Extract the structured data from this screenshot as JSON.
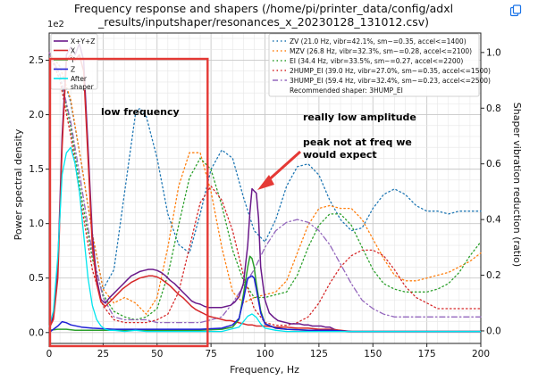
{
  "page": {
    "copy_icon": "copy-image-icon"
  },
  "chart_data": {
    "type": "line",
    "title_line1": "Frequency response and shapers (/home/pi/printer_data/config/adxl",
    "title_line2": "_results/inputshaper/resonances_x_20230128_131012.csv)",
    "xlabel": "Frequency, Hz",
    "ylabel": "Power spectral density",
    "y2label": "Shaper vibration reduction (ratio)",
    "y_scale_label": "1e2",
    "xlim": [
      0,
      200
    ],
    "ylim": [
      -0.1,
      2.75
    ],
    "y2lim": [
      -0.045,
      1.07
    ],
    "xticks": [
      0,
      25,
      50,
      75,
      100,
      125,
      150,
      175,
      200
    ],
    "yticks": [
      0.0,
      0.5,
      1.0,
      1.5,
      2.0,
      2.5
    ],
    "y2ticks": [
      0.0,
      0.2,
      0.4,
      0.6,
      0.8,
      1.0
    ],
    "grid": true,
    "psd_series": [
      {
        "name": "X+Y+Z",
        "color": "#6a1a8a",
        "width": 1.5,
        "x": [
          0,
          2,
          4,
          6,
          8,
          10,
          12,
          14,
          16,
          18,
          20,
          22,
          24,
          26,
          28,
          30,
          32,
          34,
          36,
          38,
          40,
          42,
          44,
          46,
          48,
          50,
          52,
          54,
          56,
          58,
          60,
          62,
          64,
          66,
          68,
          70,
          72,
          74,
          76,
          78,
          80,
          82,
          84,
          86,
          88,
          90,
          92,
          93,
          94,
          95,
          96,
          97,
          98,
          100,
          102,
          104,
          106,
          108,
          110,
          112,
          114,
          116,
          118,
          120,
          122,
          124,
          126,
          128,
          130,
          132,
          134,
          136,
          140,
          150,
          160,
          170,
          180,
          190,
          200
        ],
        "y": [
          0.05,
          0.15,
          0.6,
          1.8,
          2.55,
          2.62,
          2.55,
          2.65,
          2.5,
          1.7,
          0.9,
          0.5,
          0.3,
          0.27,
          0.32,
          0.36,
          0.4,
          0.44,
          0.48,
          0.52,
          0.54,
          0.56,
          0.57,
          0.58,
          0.58,
          0.57,
          0.55,
          0.52,
          0.48,
          0.45,
          0.41,
          0.37,
          0.33,
          0.29,
          0.27,
          0.26,
          0.24,
          0.23,
          0.23,
          0.23,
          0.23,
          0.24,
          0.25,
          0.28,
          0.33,
          0.45,
          0.8,
          1.1,
          1.32,
          1.3,
          1.28,
          1.05,
          0.6,
          0.3,
          0.18,
          0.14,
          0.11,
          0.1,
          0.09,
          0.08,
          0.08,
          0.08,
          0.07,
          0.07,
          0.06,
          0.06,
          0.06,
          0.05,
          0.05,
          0.03,
          0.02,
          0.015,
          0.01,
          0.01,
          0.01,
          0.01,
          0.01,
          0.01,
          0.01
        ]
      },
      {
        "name": "X",
        "color": "#d62728",
        "width": 1.5,
        "x": [
          0,
          2,
          4,
          6,
          8,
          10,
          12,
          14,
          16,
          18,
          20,
          22,
          24,
          26,
          28,
          30,
          32,
          34,
          36,
          38,
          40,
          42,
          44,
          46,
          48,
          50,
          52,
          54,
          56,
          58,
          60,
          62,
          64,
          66,
          68,
          70,
          72,
          74,
          76,
          78,
          80,
          82,
          84,
          86,
          88,
          90,
          92,
          94,
          96,
          98,
          100,
          105,
          110,
          115,
          120,
          125,
          130,
          135,
          140,
          150,
          200
        ],
        "y": [
          0.04,
          0.12,
          0.5,
          1.7,
          2.5,
          2.55,
          2.5,
          2.55,
          2.4,
          1.6,
          0.8,
          0.45,
          0.28,
          0.24,
          0.28,
          0.32,
          0.36,
          0.4,
          0.43,
          0.46,
          0.48,
          0.5,
          0.51,
          0.52,
          0.52,
          0.51,
          0.49,
          0.46,
          0.43,
          0.39,
          0.35,
          0.32,
          0.28,
          0.24,
          0.21,
          0.19,
          0.17,
          0.15,
          0.14,
          0.13,
          0.12,
          0.11,
          0.11,
          0.1,
          0.09,
          0.08,
          0.07,
          0.07,
          0.06,
          0.06,
          0.06,
          0.05,
          0.05,
          0.04,
          0.04,
          0.03,
          0.03,
          0.02,
          0.01,
          0.01,
          0.01
        ]
      },
      {
        "name": "Y",
        "color": "#2ca02c",
        "width": 1.5,
        "x": [
          0,
          4,
          8,
          12,
          20,
          30,
          40,
          50,
          60,
          70,
          80,
          85,
          88,
          90,
          92,
          93,
          94,
          95,
          96,
          98,
          100,
          105,
          110,
          120,
          130,
          140,
          200
        ],
        "y": [
          0.02,
          0.03,
          0.03,
          0.02,
          0.02,
          0.02,
          0.02,
          0.02,
          0.02,
          0.02,
          0.03,
          0.05,
          0.12,
          0.35,
          0.6,
          0.7,
          0.68,
          0.6,
          0.45,
          0.2,
          0.08,
          0.04,
          0.03,
          0.02,
          0.02,
          0.01,
          0.01
        ]
      },
      {
        "name": "Z",
        "color": "#1f1fd6",
        "width": 1.5,
        "x": [
          0,
          2,
          4,
          6,
          8,
          10,
          15,
          20,
          30,
          40,
          50,
          60,
          70,
          80,
          85,
          88,
          90,
          92,
          94,
          95,
          96,
          98,
          100,
          105,
          110,
          120,
          130,
          140,
          200
        ],
        "y": [
          0.0,
          0.03,
          0.06,
          0.1,
          0.09,
          0.07,
          0.05,
          0.04,
          0.03,
          0.03,
          0.03,
          0.03,
          0.03,
          0.04,
          0.07,
          0.13,
          0.3,
          0.5,
          0.52,
          0.5,
          0.4,
          0.18,
          0.08,
          0.04,
          0.03,
          0.02,
          0.02,
          0.01,
          0.01
        ]
      },
      {
        "name": "After shaper",
        "color": "#00e5ee",
        "width": 1.3,
        "x": [
          0,
          2,
          4,
          6,
          8,
          10,
          12,
          14,
          16,
          18,
          20,
          22,
          24,
          26,
          28,
          30,
          35,
          40,
          45,
          50,
          60,
          70,
          80,
          88,
          90,
          92,
          94,
          96,
          98,
          100,
          105,
          110,
          120,
          200
        ],
        "y": [
          0.05,
          0.2,
          0.7,
          1.45,
          1.65,
          1.7,
          1.55,
          1.3,
          0.9,
          0.5,
          0.25,
          0.12,
          0.06,
          0.03,
          0.02,
          0.02,
          0.01,
          0.02,
          0.01,
          0.01,
          0.01,
          0.01,
          0.01,
          0.05,
          0.1,
          0.15,
          0.17,
          0.14,
          0.08,
          0.04,
          0.02,
          0.01,
          0.01,
          0.01
        ]
      }
    ],
    "shaper_series": [
      {
        "name": "ZV (21.0 Hz, vibr=42.1%, sm~=0.35, accel<=1400)",
        "color": "#1f77b4",
        "dash": "1.5,3",
        "x": [
          0,
          5,
          10,
          15,
          20,
          25,
          30,
          35,
          40,
          42,
          45,
          50,
          55,
          60,
          65,
          70,
          75,
          80,
          85,
          90,
          95,
          100,
          105,
          110,
          115,
          120,
          125,
          130,
          135,
          140,
          145,
          150,
          155,
          160,
          165,
          170,
          175,
          180,
          185,
          190,
          195,
          200
        ],
        "y": [
          1.0,
          0.95,
          0.82,
          0.6,
          0.35,
          0.15,
          0.22,
          0.5,
          0.78,
          0.8,
          0.77,
          0.62,
          0.42,
          0.31,
          0.28,
          0.42,
          0.58,
          0.65,
          0.62,
          0.48,
          0.36,
          0.32,
          0.4,
          0.52,
          0.59,
          0.6,
          0.56,
          0.47,
          0.4,
          0.36,
          0.37,
          0.44,
          0.49,
          0.51,
          0.49,
          0.45,
          0.43,
          0.43,
          0.42,
          0.43,
          0.43,
          0.43
        ]
      },
      {
        "name": "MZV (26.8 Hz, vibr=32.3%, sm~=0.28, accel<=2100)",
        "color": "#ff7f0e",
        "dash": "1.5,3",
        "x": [
          0,
          5,
          10,
          15,
          20,
          25,
          30,
          35,
          40,
          45,
          50,
          55,
          60,
          65,
          70,
          75,
          80,
          85,
          90,
          95,
          100,
          105,
          110,
          115,
          120,
          125,
          130,
          135,
          140,
          145,
          150,
          155,
          160,
          165,
          170,
          175,
          180,
          185,
          190,
          195,
          200
        ],
        "y": [
          1.0,
          0.95,
          0.83,
          0.6,
          0.35,
          0.15,
          0.1,
          0.12,
          0.1,
          0.06,
          0.12,
          0.3,
          0.52,
          0.64,
          0.64,
          0.5,
          0.3,
          0.14,
          0.1,
          0.12,
          0.13,
          0.14,
          0.18,
          0.28,
          0.38,
          0.44,
          0.45,
          0.44,
          0.44,
          0.4,
          0.33,
          0.26,
          0.2,
          0.18,
          0.18,
          0.19,
          0.2,
          0.21,
          0.23,
          0.25,
          0.28
        ]
      },
      {
        "name": "EI (34.4 Hz, vibr=33.5%, sm~=0.27, accel<=2200)",
        "color": "#2ca02c",
        "dash": "1.5,3",
        "x": [
          0,
          5,
          10,
          15,
          20,
          25,
          30,
          35,
          40,
          45,
          50,
          55,
          60,
          65,
          70,
          75,
          80,
          85,
          90,
          95,
          100,
          105,
          110,
          115,
          120,
          125,
          130,
          135,
          140,
          145,
          150,
          155,
          160,
          165,
          170,
          175,
          180,
          185,
          190,
          195,
          200
        ],
        "y": [
          1.0,
          0.92,
          0.73,
          0.48,
          0.26,
          0.13,
          0.07,
          0.05,
          0.04,
          0.05,
          0.08,
          0.2,
          0.38,
          0.55,
          0.62,
          0.58,
          0.45,
          0.29,
          0.18,
          0.12,
          0.12,
          0.13,
          0.14,
          0.2,
          0.3,
          0.38,
          0.42,
          0.42,
          0.38,
          0.3,
          0.22,
          0.17,
          0.15,
          0.14,
          0.14,
          0.14,
          0.15,
          0.17,
          0.21,
          0.27,
          0.32
        ]
      },
      {
        "name": "2HUMP_EI (39.0 Hz, vibr=27.0%, sm~=0.35, accel<=1500)",
        "color": "#d62728",
        "dash": "1.5,3",
        "x": [
          0,
          5,
          10,
          15,
          20,
          25,
          30,
          35,
          40,
          45,
          50,
          55,
          60,
          65,
          70,
          75,
          80,
          85,
          90,
          95,
          100,
          105,
          110,
          115,
          120,
          125,
          130,
          135,
          140,
          145,
          150,
          155,
          160,
          165,
          170,
          175,
          180,
          185,
          190,
          195,
          200
        ],
        "y": [
          1.0,
          0.9,
          0.7,
          0.45,
          0.22,
          0.09,
          0.04,
          0.03,
          0.03,
          0.03,
          0.04,
          0.06,
          0.14,
          0.3,
          0.46,
          0.52,
          0.47,
          0.36,
          0.2,
          0.08,
          0.03,
          0.02,
          0.02,
          0.03,
          0.05,
          0.1,
          0.17,
          0.23,
          0.27,
          0.29,
          0.29,
          0.27,
          0.22,
          0.16,
          0.12,
          0.1,
          0.08,
          0.08,
          0.08,
          0.08,
          0.08
        ]
      },
      {
        "name": "3HUMP_EI (59.4 Hz, vibr=32.4%, sm~=0.23, accel<=2500)",
        "color": "#9467bd",
        "dash": "6,3,1.5,3",
        "x": [
          0,
          5,
          10,
          15,
          20,
          25,
          30,
          35,
          40,
          45,
          50,
          55,
          60,
          65,
          70,
          75,
          80,
          85,
          90,
          95,
          100,
          105,
          110,
          115,
          120,
          125,
          130,
          135,
          140,
          145,
          150,
          155,
          160,
          165,
          170,
          175,
          180,
          185,
          190,
          195,
          200
        ],
        "y": [
          1.0,
          0.92,
          0.75,
          0.52,
          0.28,
          0.12,
          0.05,
          0.04,
          0.04,
          0.04,
          0.03,
          0.03,
          0.03,
          0.03,
          0.03,
          0.04,
          0.05,
          0.1,
          0.16,
          0.22,
          0.3,
          0.36,
          0.39,
          0.4,
          0.39,
          0.36,
          0.31,
          0.24,
          0.17,
          0.11,
          0.08,
          0.06,
          0.05,
          0.05,
          0.05,
          0.05,
          0.05,
          0.05,
          0.05,
          0.05,
          0.05
        ]
      }
    ],
    "legend_left": [
      "X+Y+Z",
      "X",
      "Y",
      "Z",
      "After shaper"
    ],
    "legend_right_note": "Recommended shaper: 3HUMP_EI",
    "annotations": {
      "low_frequency": "low frequency",
      "really_low_amplitude": "really low amplitude",
      "peak_line1": "peak not at freq we",
      "peak_line2": "would expect"
    },
    "highlight_box_range_x": [
      0,
      73
    ],
    "highlight_color": "#e53935"
  }
}
